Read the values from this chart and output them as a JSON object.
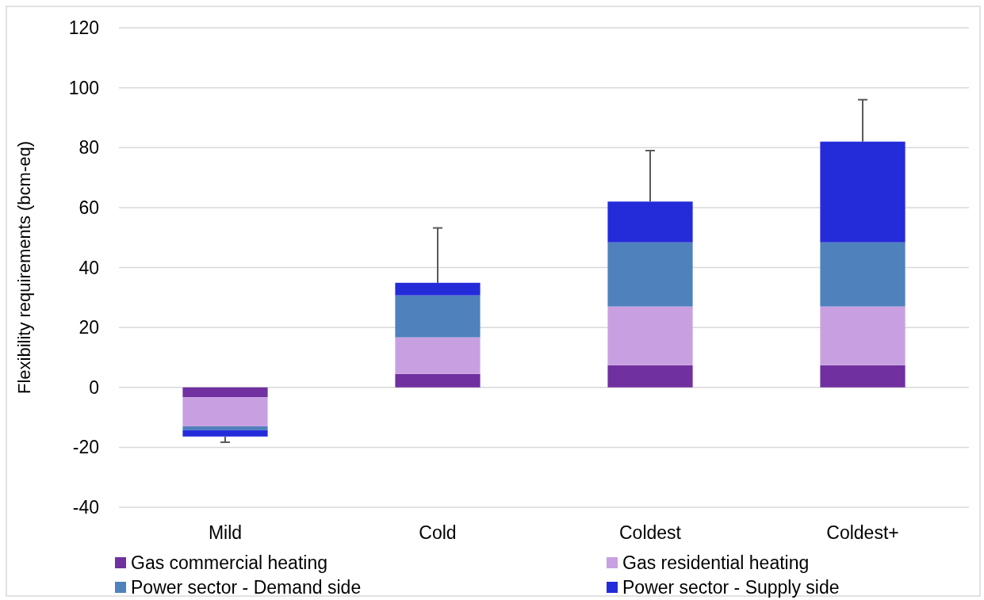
{
  "chart_data": {
    "type": "bar",
    "stacked": true,
    "ylabel": "Flexibility requirements (bcm-eq)",
    "categories": [
      "Mild",
      "Cold",
      "Coldest",
      "Coldest+"
    ],
    "series": [
      {
        "name": "Gas commercial heating",
        "color": "#7030a0",
        "values": [
          -3.3,
          4.5,
          7.4,
          7.4
        ]
      },
      {
        "name": "Gas residential heating",
        "color": "#c8a0e2",
        "values": [
          -9.7,
          12.2,
          19.6,
          19.6
        ]
      },
      {
        "name": "Power sector - Demand side",
        "color": "#4f81bd",
        "values": [
          -1.3,
          14,
          21.4,
          21.4
        ]
      },
      {
        "name": "Power sector - Supply side",
        "color": "#242bd9",
        "values": [
          -2.1,
          4.2,
          13.6,
          33.6
        ],
        "errors": [
          [
            -18.3,
            -16.4
          ],
          [
            34.9,
            53.2
          ],
          [
            62,
            79
          ],
          [
            82,
            96
          ]
        ]
      }
    ],
    "ylim": [
      -40,
      120
    ],
    "yticks": [
      -40,
      -20,
      0,
      20,
      40,
      60,
      80,
      100,
      120
    ],
    "grid": "y",
    "legend": "bottom"
  }
}
